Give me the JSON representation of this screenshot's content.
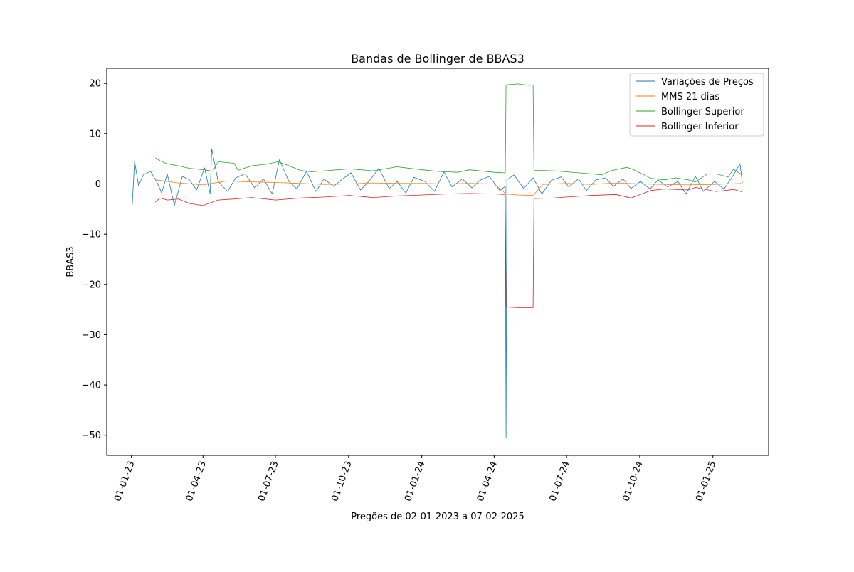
{
  "chart_data": {
    "type": "line",
    "title": "Bandas de Bollinger de BBAS3",
    "xlabel": "Pregões de 02-01-2023 a 07-02-2025",
    "ylabel": "BBAS3",
    "ylim": [
      -54,
      23
    ],
    "xlim": [
      "2022-12-01",
      "2025-03-12"
    ],
    "grid": false,
    "legend_position": "top-right",
    "x_ticks": [
      {
        "date": "2023-01-01",
        "label": "01-01-23"
      },
      {
        "date": "2023-04-01",
        "label": "01-04-23"
      },
      {
        "date": "2023-07-01",
        "label": "01-07-23"
      },
      {
        "date": "2023-10-01",
        "label": "01-10-23"
      },
      {
        "date": "2024-01-01",
        "label": "01-01-24"
      },
      {
        "date": "2024-04-01",
        "label": "01-04-24"
      },
      {
        "date": "2024-07-01",
        "label": "01-07-24"
      },
      {
        "date": "2024-10-01",
        "label": "01-10-24"
      },
      {
        "date": "2025-01-01",
        "label": "01-01-25"
      }
    ],
    "y_ticks": [
      20,
      10,
      0,
      -10,
      -20,
      -30,
      -40,
      -50
    ],
    "y_tick_labels": [
      "20",
      "10",
      "0",
      "−10",
      "−20",
      "−30",
      "−40",
      "−50"
    ],
    "series": [
      {
        "name": "Variações de Preços",
        "color": "#1f77b4",
        "x": [
          "2023-01-02",
          "2023-01-05",
          "2023-01-10",
          "2023-01-16",
          "2023-01-25",
          "2023-02-02",
          "2023-02-08",
          "2023-02-15",
          "2023-02-24",
          "2023-03-06",
          "2023-03-15",
          "2023-03-24",
          "2023-04-03",
          "2023-04-10",
          "2023-04-12",
          "2023-04-20",
          "2023-05-02",
          "2023-05-12",
          "2023-05-24",
          "2023-06-05",
          "2023-06-16",
          "2023-06-27",
          "2023-07-06",
          "2023-07-18",
          "2023-07-28",
          "2023-08-09",
          "2023-08-21",
          "2023-08-31",
          "2023-09-12",
          "2023-09-22",
          "2023-10-04",
          "2023-10-16",
          "2023-10-27",
          "2023-11-08",
          "2023-11-21",
          "2023-12-01",
          "2023-12-12",
          "2023-12-22",
          "2024-01-05",
          "2024-01-17",
          "2024-01-29",
          "2024-02-08",
          "2024-02-21",
          "2024-03-04",
          "2024-03-14",
          "2024-03-26",
          "2024-04-08",
          "2024-04-15",
          "2024-04-16",
          "2024-04-17",
          "2024-04-26",
          "2024-05-08",
          "2024-05-20",
          "2024-05-31",
          "2024-06-12",
          "2024-06-24",
          "2024-07-04",
          "2024-07-16",
          "2024-07-26",
          "2024-08-07",
          "2024-08-19",
          "2024-08-29",
          "2024-09-10",
          "2024-09-20",
          "2024-10-02",
          "2024-10-14",
          "2024-10-24",
          "2024-11-05",
          "2024-11-18",
          "2024-11-28",
          "2024-12-10",
          "2024-12-20",
          "2025-01-03",
          "2025-01-15",
          "2025-01-27",
          "2025-02-04",
          "2025-02-07"
        ],
        "values": [
          -4.2,
          4.5,
          -0.3,
          1.8,
          2.5,
          0.4,
          -1.8,
          2.0,
          -4.3,
          1.5,
          0.8,
          -1.2,
          3.2,
          -2.0,
          7.0,
          0.5,
          -1.5,
          1.2,
          2.0,
          -0.8,
          1.0,
          -2.0,
          4.8,
          0.5,
          -1.0,
          2.5,
          -1.5,
          1.0,
          -0.5,
          0.8,
          2.2,
          -1.2,
          0.6,
          3.1,
          -0.9,
          0.5,
          -1.8,
          1.3,
          0.5,
          -1.5,
          2.4,
          -0.6,
          1.0,
          -0.8,
          0.7,
          1.5,
          -1.3,
          -0.5,
          -50.5,
          0.8,
          1.8,
          -0.9,
          1.2,
          -2.0,
          0.7,
          1.4,
          -0.6,
          1.0,
          -1.3,
          0.8,
          1.2,
          -0.5,
          1.0,
          -0.9,
          0.5,
          -1.0,
          0.8,
          -0.6,
          0.5,
          -2.0,
          1.5,
          -1.5,
          0.5,
          -1.0,
          1.8,
          4.0,
          0.2
        ]
      },
      {
        "name": "MMS 21 dias",
        "color": "#ff7f0e",
        "x": [
          "2023-02-01",
          "2023-03-01",
          "2023-04-01",
          "2023-05-01",
          "2023-06-01",
          "2023-07-01",
          "2023-08-01",
          "2023-09-01",
          "2023-10-01",
          "2023-11-01",
          "2023-12-01",
          "2024-01-01",
          "2024-02-01",
          "2024-03-01",
          "2024-04-01",
          "2024-04-16",
          "2024-05-01",
          "2024-05-20",
          "2024-06-01",
          "2024-07-01",
          "2024-08-01",
          "2024-09-01",
          "2024-10-01",
          "2024-11-01",
          "2024-12-01",
          "2025-01-01",
          "2025-02-07"
        ],
        "values": [
          0.8,
          0.2,
          -0.2,
          0.6,
          0.4,
          0.3,
          0.1,
          -0.1,
          0.0,
          0.2,
          0.1,
          0.1,
          0.0,
          0.1,
          0.0,
          -2.0,
          -2.2,
          -2.3,
          -0.1,
          0.1,
          -0.1,
          0.2,
          0.0,
          -0.1,
          -0.2,
          -0.1,
          0.1
        ]
      },
      {
        "name": "Bollinger Superior",
        "color": "#2ca02c",
        "x": [
          "2023-01-31",
          "2023-02-06",
          "2023-02-15",
          "2023-03-01",
          "2023-03-15",
          "2023-04-03",
          "2023-04-13",
          "2023-04-20",
          "2023-05-10",
          "2023-05-15",
          "2023-06-01",
          "2023-06-20",
          "2023-07-04",
          "2023-07-20",
          "2023-08-01",
          "2023-08-15",
          "2023-09-01",
          "2023-10-02",
          "2023-11-01",
          "2023-12-01",
          "2024-01-02",
          "2024-01-20",
          "2024-02-15",
          "2024-03-01",
          "2024-04-01",
          "2024-04-15",
          "2024-04-16",
          "2024-05-01",
          "2024-05-15",
          "2024-05-20",
          "2024-05-21",
          "2024-06-15",
          "2024-07-01",
          "2024-08-01",
          "2024-08-15",
          "2024-08-25",
          "2024-09-15",
          "2024-09-25",
          "2024-10-15",
          "2024-11-01",
          "2024-11-15",
          "2024-12-01",
          "2024-12-10",
          "2024-12-25",
          "2025-01-05",
          "2025-01-20",
          "2025-01-27",
          "2025-02-07"
        ],
        "values": [
          5.2,
          4.6,
          4.0,
          3.6,
          3.1,
          2.8,
          2.5,
          4.4,
          4.1,
          2.7,
          3.6,
          3.9,
          4.4,
          3.5,
          2.7,
          2.4,
          2.6,
          3.0,
          2.6,
          3.4,
          2.8,
          2.5,
          2.3,
          2.8,
          2.3,
          2.2,
          19.7,
          19.9,
          19.6,
          19.7,
          2.7,
          2.6,
          2.4,
          2.0,
          1.8,
          2.6,
          3.3,
          2.7,
          1.1,
          0.8,
          1.2,
          0.8,
          0.4,
          2.0,
          2.0,
          1.4,
          2.9,
          1.8
        ]
      },
      {
        "name": "Bollinger Inferior",
        "color": "#d62728",
        "x": [
          "2023-01-31",
          "2023-02-06",
          "2023-02-15",
          "2023-03-01",
          "2023-03-15",
          "2023-04-01",
          "2023-04-20",
          "2023-05-10",
          "2023-06-01",
          "2023-07-01",
          "2023-08-01",
          "2023-09-01",
          "2023-10-02",
          "2023-11-01",
          "2023-12-01",
          "2024-01-02",
          "2024-02-01",
          "2024-03-01",
          "2024-04-01",
          "2024-04-15",
          "2024-04-16",
          "2024-05-01",
          "2024-05-20",
          "2024-05-21",
          "2024-06-15",
          "2024-07-01",
          "2024-08-01",
          "2024-09-01",
          "2024-09-20",
          "2024-10-15",
          "2024-11-01",
          "2024-12-01",
          "2024-12-10",
          "2025-01-05",
          "2025-01-27",
          "2025-02-07"
        ],
        "values": [
          -3.6,
          -2.8,
          -3.2,
          -3.0,
          -3.9,
          -4.3,
          -3.2,
          -3.0,
          -2.7,
          -3.2,
          -2.8,
          -2.6,
          -2.3,
          -2.7,
          -2.4,
          -2.2,
          -2.0,
          -1.9,
          -2.0,
          -2.1,
          -24.5,
          -24.6,
          -24.6,
          -2.9,
          -2.8,
          -2.6,
          -2.3,
          -2.1,
          -2.8,
          -1.3,
          -1.0,
          -1.2,
          -0.7,
          -1.5,
          -1.1,
          -1.6
        ]
      }
    ]
  }
}
